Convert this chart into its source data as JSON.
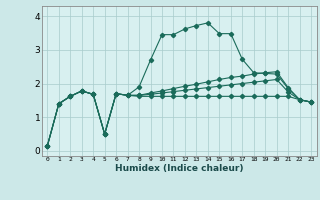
{
  "xlabel": "Humidex (Indice chaleur)",
  "bg_color": "#cce8e8",
  "plot_bg_color": "#d8f0f0",
  "grid_color": "#a8cccc",
  "line_color": "#1a6b5a",
  "x_ticks": [
    0,
    1,
    2,
    3,
    4,
    5,
    6,
    7,
    8,
    9,
    10,
    11,
    12,
    13,
    14,
    15,
    16,
    17,
    18,
    19,
    20,
    21,
    22,
    23
  ],
  "ylim": [
    -0.15,
    4.3
  ],
  "xlim": [
    -0.5,
    23.5
  ],
  "series": [
    [
      0.15,
      1.4,
      1.62,
      1.78,
      1.68,
      0.5,
      1.7,
      1.65,
      1.9,
      2.7,
      3.45,
      3.45,
      3.62,
      3.72,
      3.8,
      3.48,
      3.48,
      2.72,
      2.32,
      2.3,
      2.28,
      1.85,
      1.52,
      1.45
    ],
    [
      0.15,
      1.4,
      1.62,
      1.78,
      1.68,
      0.5,
      1.7,
      1.65,
      1.65,
      1.72,
      1.78,
      1.85,
      1.92,
      1.98,
      2.05,
      2.12,
      2.18,
      2.22,
      2.28,
      2.32,
      2.35,
      1.88,
      1.52,
      1.45
    ],
    [
      0.15,
      1.4,
      1.62,
      1.78,
      1.68,
      0.5,
      1.7,
      1.65,
      1.65,
      1.68,
      1.72,
      1.76,
      1.8,
      1.84,
      1.88,
      1.92,
      1.96,
      2.0,
      2.04,
      2.08,
      2.12,
      1.75,
      1.52,
      1.45
    ],
    [
      0.15,
      1.4,
      1.62,
      1.78,
      1.68,
      0.5,
      1.7,
      1.65,
      1.62,
      1.62,
      1.62,
      1.62,
      1.62,
      1.62,
      1.62,
      1.62,
      1.62,
      1.62,
      1.62,
      1.62,
      1.62,
      1.62,
      1.52,
      1.45
    ]
  ]
}
